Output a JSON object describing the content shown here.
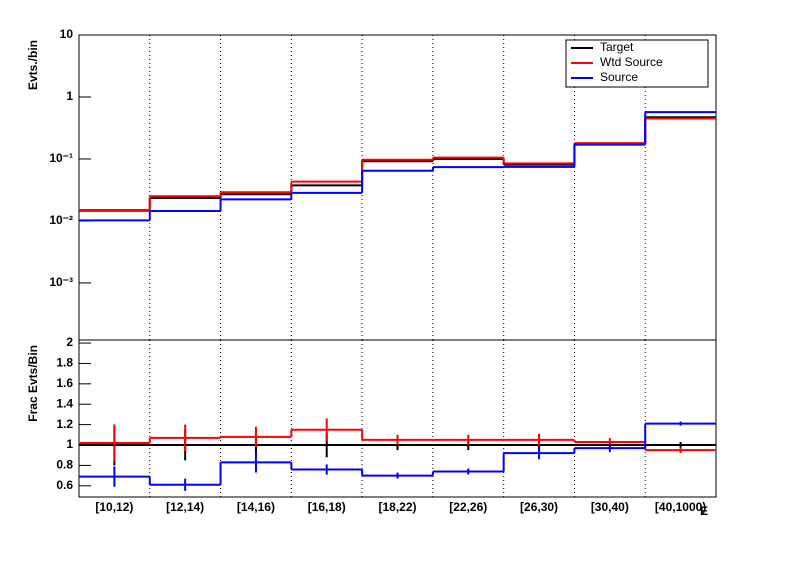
{
  "chart_data": [
    {
      "type": "step",
      "y_label": "Evts./bin",
      "log_y": true,
      "grid_x": true,
      "legend": "top-right",
      "ylim": [
        0.00012,
        10
      ],
      "yticks": [
        {
          "value": 10,
          "label": "10"
        },
        {
          "value": 1,
          "label": "1"
        },
        {
          "value": 0.1,
          "label": "10⁻¹"
        },
        {
          "value": 0.01,
          "label": "10⁻²"
        },
        {
          "value": 0.001,
          "label": "10⁻³"
        }
      ],
      "series": [
        {
          "name": "Target",
          "color": "#000000",
          "values": [
            0.0147,
            0.0234,
            0.0269,
            0.0374,
            0.092,
            0.1,
            0.081,
            0.175,
            0.47
          ]
        },
        {
          "name": "Wtd Source",
          "color": "#ff0000",
          "values": [
            0.015,
            0.025,
            0.029,
            0.043,
            0.097,
            0.105,
            0.085,
            0.18,
            0.45
          ]
        },
        {
          "name": "Source",
          "color": "#0000ff",
          "values": [
            0.0102,
            0.0145,
            0.0223,
            0.0284,
            0.0644,
            0.074,
            0.0745,
            0.17,
            0.57
          ]
        }
      ]
    },
    {
      "type": "step",
      "y_label": "Frac Evts/Bin",
      "x_label": "E",
      "grid_x": true,
      "categories": [
        "[10,12)",
        "[12,14)",
        "[14,16)",
        "[16,18)",
        "[18,22)",
        "[22,26)",
        "[26,30)",
        "[30,40)",
        "[40,1000)"
      ],
      "ylim": [
        0.49,
        2.03
      ],
      "yticks": [
        0.6,
        0.8,
        1,
        1.2,
        1.4,
        1.6,
        1.8,
        2
      ],
      "series": [
        {
          "color": "#000000",
          "values": [
            1,
            1,
            1,
            1,
            1,
            1,
            1,
            1,
            1
          ],
          "errors": [
            0.2,
            0.15,
            0.1,
            0.12,
            0.05,
            0.05,
            0.06,
            0.04,
            0.03
          ]
        },
        {
          "color": "#ff0000",
          "values": [
            1.02,
            1.07,
            1.08,
            1.15,
            1.05,
            1.05,
            1.05,
            1.03,
            0.95
          ],
          "errors": [
            0.18,
            0.13,
            0.1,
            0.11,
            0.05,
            0.05,
            0.06,
            0.04,
            0.03
          ]
        },
        {
          "color": "#0000ff",
          "values": [
            0.69,
            0.61,
            0.83,
            0.76,
            0.7,
            0.74,
            0.92,
            0.97,
            1.21
          ],
          "errors": [
            0.1,
            0.06,
            0.1,
            0.05,
            0.03,
            0.03,
            0.06,
            0.04,
            0.02
          ]
        }
      ]
    }
  ]
}
